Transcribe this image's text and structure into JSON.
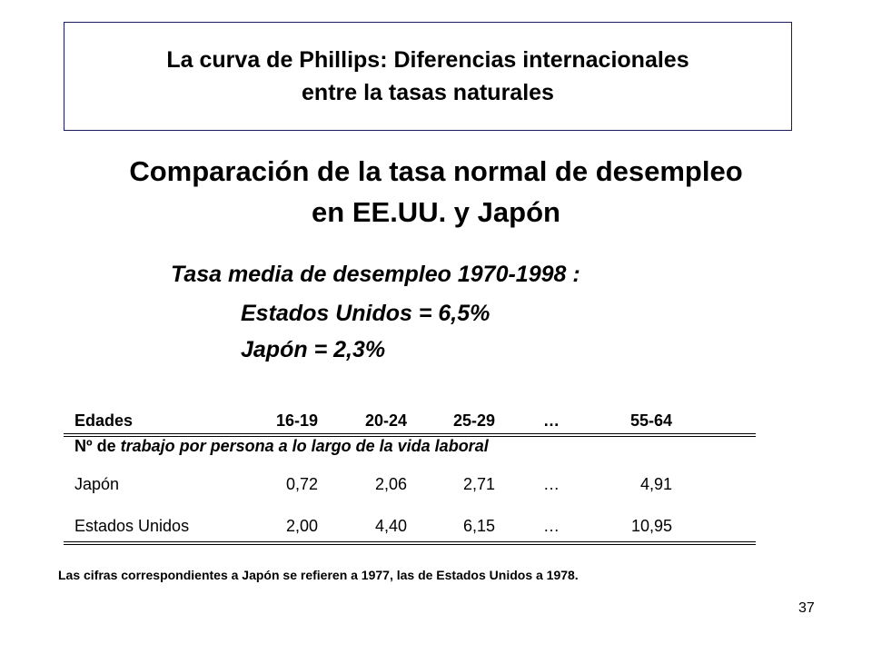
{
  "slide": {
    "title_line1": "La curva de Phillips: Diferencias internacionales",
    "title_line2": "entre la tasas naturales",
    "subtitle_line1": "Comparación de la tasa normal de desempleo",
    "subtitle_line2": "en  EE.UU. y Japón",
    "avg_title": "Tasa media de desempleo 1970-1998 :",
    "avg_us": "Estados Unidos =  6,5%",
    "avg_jp": "Japón  =  2,3%",
    "footnote": "Las cifras correspondientes a Japón se refieren a 1977, las de Estados Unidos a 1978.",
    "page_number": "37"
  },
  "table": {
    "headers": [
      "Edades",
      "16-19",
      "20-24",
      "25-29",
      "…",
      "55-64"
    ],
    "sublabel_prefix": "Nº de ",
    "sublabel_italic": "trabajo por persona a lo largo de la vida laboral",
    "rows": [
      [
        "Japón",
        "0,72",
        "2,06",
        "2,71",
        "…",
        "4,91"
      ],
      [
        "Estados Unidos",
        "2,00",
        "4,40",
        "6,15",
        "…",
        "10,95"
      ]
    ]
  }
}
